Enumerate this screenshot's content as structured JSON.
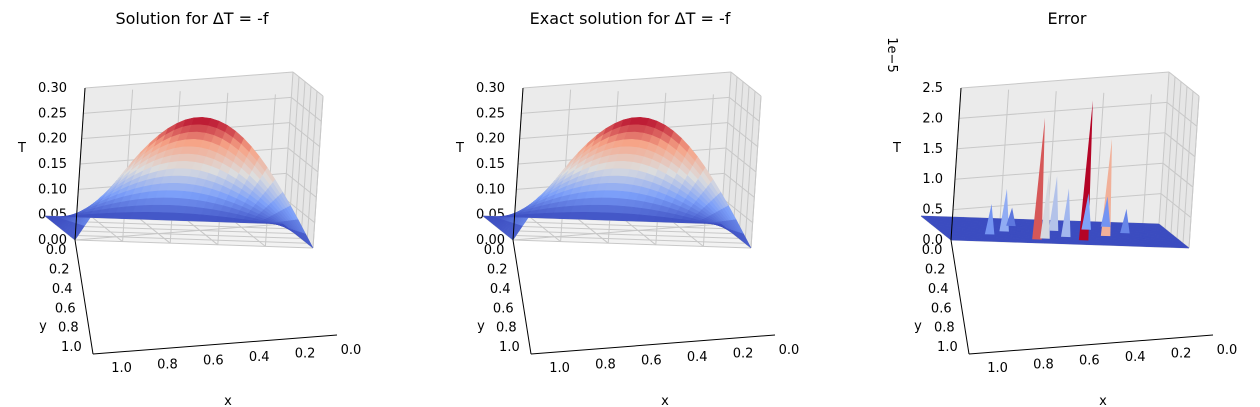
{
  "chart_data": [
    {
      "type": "surface",
      "title": "Solution for ΔT = -f",
      "xlabel": "x",
      "ylabel": "y",
      "zlabel": "T",
      "x_ticks": [
        "1.0",
        "0.8",
        "0.6",
        "0.4",
        "0.2",
        "0.0"
      ],
      "y_ticks": [
        "0.0",
        "0.2",
        "0.4",
        "0.6",
        "0.8",
        "1.0"
      ],
      "z_ticks": [
        "0.00",
        "0.05",
        "0.10",
        "0.15",
        "0.20",
        "0.25",
        "0.30"
      ],
      "xlim": [
        0,
        1
      ],
      "ylim": [
        0,
        1
      ],
      "zlim": [
        0,
        0.3
      ],
      "z_max": 0.25,
      "colormap": "coolwarm",
      "grid": true
    },
    {
      "type": "surface",
      "title": "Exact solution for ΔT = -f",
      "xlabel": "x",
      "ylabel": "y",
      "zlabel": "T",
      "x_ticks": [
        "1.0",
        "0.8",
        "0.6",
        "0.4",
        "0.2",
        "0.0"
      ],
      "y_ticks": [
        "0.0",
        "0.2",
        "0.4",
        "0.6",
        "0.8",
        "1.0"
      ],
      "z_ticks": [
        "0.00",
        "0.05",
        "0.10",
        "0.15",
        "0.20",
        "0.25",
        "0.30"
      ],
      "xlim": [
        0,
        1
      ],
      "ylim": [
        0,
        1
      ],
      "zlim": [
        0,
        0.3
      ],
      "z_max": 0.25,
      "colormap": "coolwarm",
      "grid": true
    },
    {
      "type": "surface",
      "title": "Error",
      "xlabel": "x",
      "ylabel": "y",
      "zlabel": "T",
      "offset_text": "1e−5",
      "x_ticks": [
        "1.0",
        "0.8",
        "0.6",
        "0.4",
        "0.2",
        "0.0"
      ],
      "y_ticks": [
        "0.0",
        "0.2",
        "0.4",
        "0.6",
        "0.8",
        "1.0"
      ],
      "z_ticks": [
        "0.0",
        "0.5",
        "1.0",
        "1.5",
        "2.0",
        "2.5"
      ],
      "xlim": [
        0,
        1
      ],
      "ylim": [
        0,
        1
      ],
      "zlim": [
        0,
        2.5
      ],
      "z_max": 2.3,
      "colormap": "coolwarm",
      "grid": true
    }
  ]
}
